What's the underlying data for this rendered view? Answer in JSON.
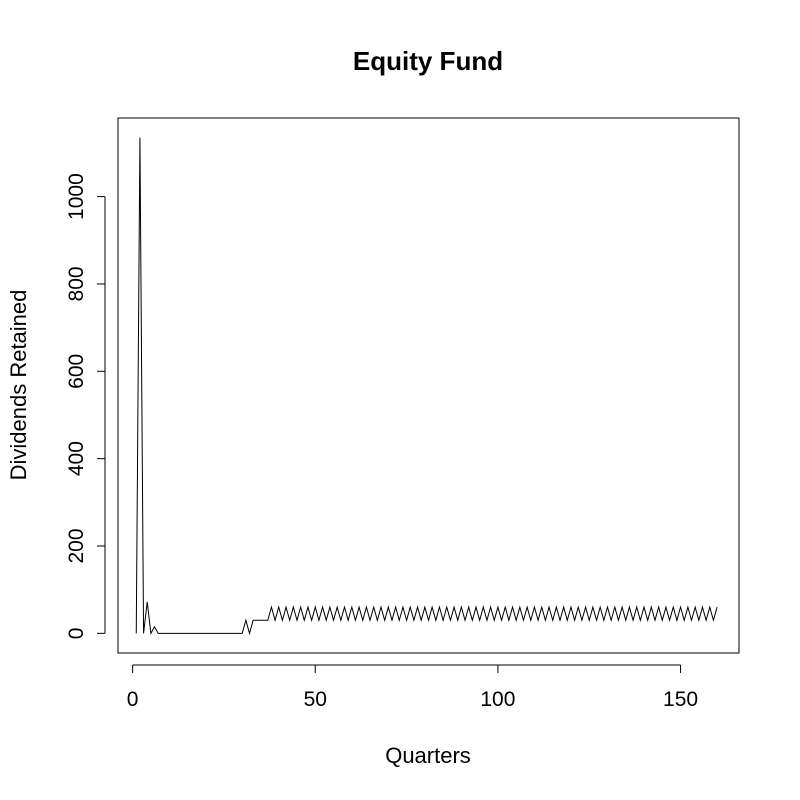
{
  "chart_data": {
    "type": "line",
    "title": "Equity Fund",
    "xlabel": "Quarters",
    "ylabel": "Dividends Retained",
    "xlim": [
      -4,
      166
    ],
    "ylim": [
      -45,
      1180
    ],
    "xticks": [
      0,
      50,
      100,
      150
    ],
    "yticks": [
      0,
      200,
      400,
      600,
      800,
      1000
    ],
    "grid": false,
    "legend": "none",
    "colors": {
      "line": "#000000"
    },
    "series": [
      {
        "x": [
          1,
          2,
          3,
          4,
          5,
          6,
          7,
          8,
          9,
          10,
          11,
          12,
          13,
          14,
          15,
          16,
          17,
          18,
          19,
          20,
          21,
          22,
          23,
          24,
          25,
          26,
          27,
          28,
          29,
          30,
          31,
          32,
          33,
          34,
          35,
          36,
          37,
          38,
          39,
          40,
          41,
          42,
          43,
          44,
          45,
          46,
          47,
          48,
          49,
          50,
          51,
          52,
          53,
          54,
          55,
          56,
          57,
          58,
          59,
          60,
          61,
          62,
          63,
          64,
          65,
          66,
          67,
          68,
          69,
          70,
          71,
          72,
          73,
          74,
          75,
          76,
          77,
          78,
          79,
          80,
          81,
          82,
          83,
          84,
          85,
          86,
          87,
          88,
          89,
          90,
          91,
          92,
          93,
          94,
          95,
          96,
          97,
          98,
          99,
          100,
          101,
          102,
          103,
          104,
          105,
          106,
          107,
          108,
          109,
          110,
          111,
          112,
          113,
          114,
          115,
          116,
          117,
          118,
          119,
          120,
          121,
          122,
          123,
          124,
          125,
          126,
          127,
          128,
          129,
          130,
          131,
          132,
          133,
          134,
          135,
          136,
          137,
          138,
          139,
          140,
          141,
          142,
          143,
          144,
          145,
          146,
          147,
          148,
          149,
          150,
          151,
          152,
          153,
          154,
          155,
          156,
          157,
          158,
          159,
          160
        ],
        "values": [
          0,
          1135,
          0,
          72,
          0,
          15,
          0,
          0,
          0,
          0,
          0,
          0,
          0,
          0,
          0,
          0,
          0,
          0,
          0,
          0,
          0,
          0,
          0,
          0,
          0,
          0,
          0,
          0,
          0,
          0,
          30,
          0,
          30,
          30,
          30,
          30,
          30,
          60,
          30,
          60,
          30,
          60,
          30,
          60,
          30,
          60,
          30,
          60,
          30,
          60,
          30,
          60,
          30,
          60,
          30,
          60,
          30,
          60,
          30,
          60,
          30,
          60,
          30,
          60,
          30,
          60,
          30,
          60,
          30,
          60,
          30,
          60,
          30,
          60,
          30,
          60,
          30,
          60,
          30,
          60,
          30,
          60,
          30,
          60,
          30,
          60,
          30,
          60,
          30,
          60,
          30,
          60,
          30,
          60,
          30,
          60,
          30,
          60,
          30,
          60,
          30,
          60,
          30,
          60,
          30,
          60,
          30,
          60,
          30,
          60,
          30,
          60,
          30,
          60,
          30,
          60,
          30,
          60,
          30,
          60,
          30,
          60,
          30,
          60,
          30,
          60,
          30,
          60,
          30,
          60,
          30,
          60,
          30,
          60,
          30,
          60,
          30,
          60,
          30,
          60,
          30,
          60,
          30,
          60,
          30,
          60,
          30,
          60,
          30,
          60,
          30,
          60,
          30,
          60,
          30,
          60,
          30,
          60,
          30,
          60
        ]
      }
    ]
  }
}
